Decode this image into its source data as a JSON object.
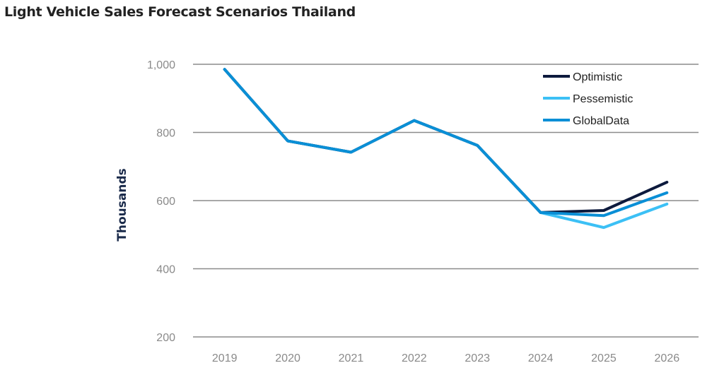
{
  "chart_data": {
    "type": "line",
    "title": "Light Vehicle Sales Forecast Scenarios Thailand",
    "xlabel": "",
    "ylabel": "Thousands",
    "ylim": [
      200,
      1000
    ],
    "yticks": [
      "200",
      "400",
      "600",
      "800",
      "1,000"
    ],
    "ytick_values": [
      200,
      400,
      600,
      800,
      1000
    ],
    "categories": [
      "2019",
      "2020",
      "2021",
      "2022",
      "2023",
      "2024",
      "2025",
      "2026"
    ],
    "grid": true,
    "legend_position": "top-right",
    "series": [
      {
        "name": "Optimistic",
        "color": "#0d1a3d",
        "values": [
          985,
          775,
          742,
          835,
          762,
          565,
          571,
          654
        ]
      },
      {
        "name": "Pessemistic",
        "color": "#3cc0f5",
        "values": [
          985,
          775,
          742,
          835,
          762,
          565,
          521,
          590
        ]
      },
      {
        "name": "GlobalData",
        "color": "#0a8fd6",
        "values": [
          985,
          775,
          742,
          835,
          762,
          565,
          556,
          623
        ]
      }
    ]
  }
}
